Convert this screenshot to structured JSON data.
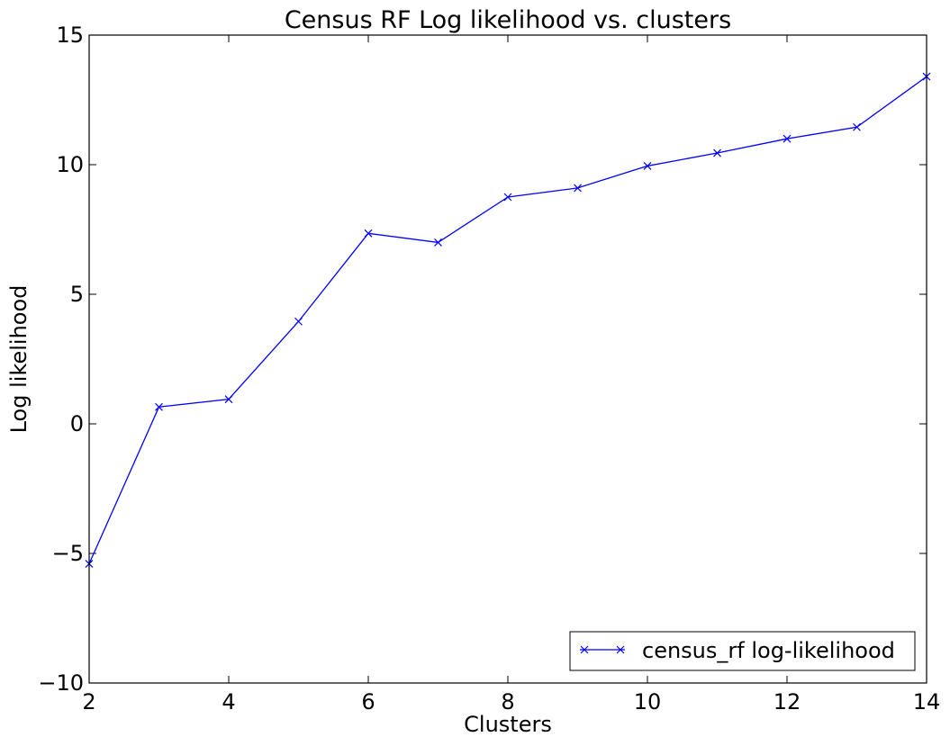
{
  "chart_data": {
    "type": "line",
    "title": "Census RF Log likelihood vs. clusters",
    "xlabel": "Clusters",
    "ylabel": "Log likelihood",
    "xlim": [
      2,
      14
    ],
    "ylim": [
      -10,
      15
    ],
    "x_ticks": [
      2,
      4,
      6,
      8,
      10,
      12,
      14
    ],
    "y_ticks": [
      -10,
      -5,
      0,
      5,
      10,
      15
    ],
    "y_tick_labels": [
      "−10",
      "−5",
      "0",
      "5",
      "10",
      "15"
    ],
    "x_tick_labels": [
      "2",
      "4",
      "6",
      "8",
      "10",
      "12",
      "14"
    ],
    "grid": false,
    "legend_position": "lower-right",
    "series": [
      {
        "name": "census_rf log-likelihood",
        "color": "#0000ff",
        "marker": "x",
        "x": [
          2,
          3,
          4,
          5,
          6,
          7,
          8,
          9,
          10,
          11,
          12,
          13,
          14
        ],
        "y": [
          -5.4,
          0.65,
          0.95,
          3.95,
          7.35,
          7.0,
          8.75,
          9.1,
          9.95,
          10.45,
          11.0,
          11.45,
          13.4
        ]
      }
    ]
  }
}
